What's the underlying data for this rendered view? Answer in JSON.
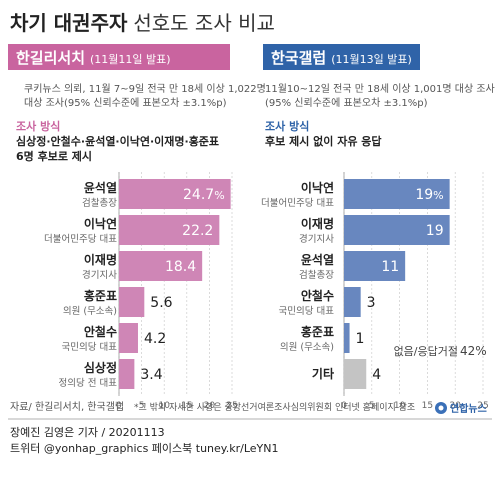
{
  "title": {
    "bold": "차기 대권주자",
    "light": "선호도 조사 비교"
  },
  "colors": {
    "left_accent": "#c9649f",
    "left_bar": "#cf86b6",
    "right_accent": "#2f63a8",
    "right_bar": "#6887bf",
    "other_bar": "#c4c4c4",
    "grid": "#cccccc",
    "label_sub": "#666666"
  },
  "chart_data": [
    {
      "type": "bar",
      "orientation": "horizontal",
      "header": "한길리서치",
      "header_date": "(11월11일 발표)",
      "survey_lines": [
        "쿠키뉴스 의뢰, 11월 7~9일 전국 만 18세 이상 1,022명",
        "대상 조사(95% 신뢰수준에 표본오차 ±3.1%p)"
      ],
      "method_label": "조사 방식",
      "method_lines": [
        "심상정·안철수·윤석열·이낙연·이재명·홍준표",
        "6명 후보로 제시"
      ],
      "xlim": [
        0,
        25
      ],
      "ticks": [
        0,
        5,
        10,
        15,
        20,
        25
      ],
      "unit_label": "%",
      "items": [
        {
          "name": "윤석열",
          "sub": "검찰총장",
          "value": 24.7,
          "label": "24.7"
        },
        {
          "name": "이낙연",
          "sub": "더불어민주당 대표",
          "value": 22.2,
          "label": "22.2"
        },
        {
          "name": "이재명",
          "sub": "경기지사",
          "value": 18.4,
          "label": "18.4"
        },
        {
          "name": "홍준표",
          "sub": "의원 (무소속)",
          "value": 5.6,
          "label": "5.6"
        },
        {
          "name": "안철수",
          "sub": "국민의당 대표",
          "value": 4.2,
          "label": "4.2"
        },
        {
          "name": "심상정",
          "sub": "정의당 전 대표",
          "value": 3.4,
          "label": "3.4"
        }
      ]
    },
    {
      "type": "bar",
      "orientation": "horizontal",
      "header": "한국갤럽",
      "header_date": "(11월13일 발표)",
      "survey_lines": [
        "11월10~12일 전국 만 18세 이상 1,001명 대상 조사",
        "(95% 신뢰수준에 표본오차 ±3.1%p)"
      ],
      "method_label": "조사 방식",
      "method_lines": [
        "후보 제시 없이 자유 응답"
      ],
      "xlim": [
        0,
        25
      ],
      "ticks": [
        0,
        5,
        10,
        15,
        20,
        25
      ],
      "unit_label": "%",
      "items": [
        {
          "name": "이낙연",
          "sub": "더불어민주당 대표",
          "value": 19,
          "label": "19"
        },
        {
          "name": "이재명",
          "sub": "경기지사",
          "value": 19,
          "label": "19"
        },
        {
          "name": "윤석열",
          "sub": "검찰총장",
          "value": 11,
          "label": "11"
        },
        {
          "name": "안철수",
          "sub": "국민의당 대표",
          "value": 3,
          "label": "3"
        },
        {
          "name": "홍준표",
          "sub": "의원 (무소속)",
          "value": 1,
          "label": "1"
        },
        {
          "name": "기타",
          "sub": "",
          "value": 4,
          "label": "4",
          "muted": true
        }
      ],
      "note": {
        "text": "없음/응답거절",
        "value": "42%"
      }
    }
  ],
  "footer": {
    "source": "자료/ 한길리서치, 한국갤럽",
    "disclaimer": "*그 밖의 자세한 사항은 중앙선거여론조사심의위원회 인터넷 홈페이지 참조",
    "byline": "장예진 김영은 기자 / 20201113",
    "social": "트위터 @yonhap_graphics  페이스북 tuney.kr/LeYN1",
    "logo": "연합뉴스"
  }
}
